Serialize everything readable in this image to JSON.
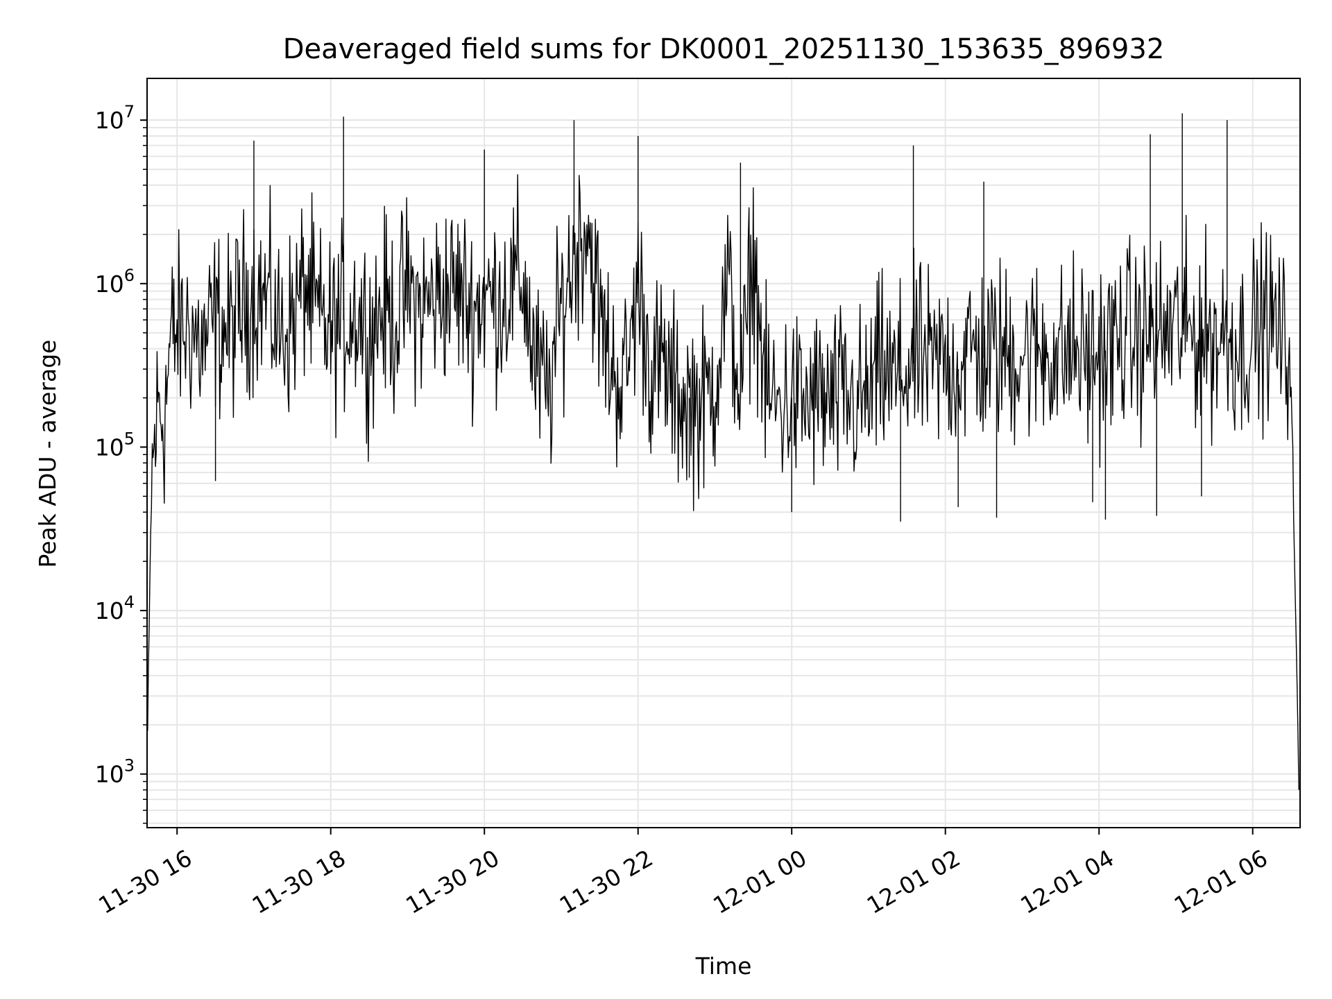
{
  "chart_data": {
    "type": "line",
    "title": "Deaveraged field sums for DK0001_20251130_153635_896932",
    "xlabel": "Time",
    "ylabel": "Peak ADU - average",
    "yscale": "log",
    "ylim": [
      470,
      18000000
    ],
    "xlim": [
      "2025-11-30 15:36:35",
      "2025-12-01 06:37:00"
    ],
    "grid": "on",
    "x_ticks": [
      {
        "label": "11-30 16",
        "time": "2025-11-30 16:00"
      },
      {
        "label": "11-30 18",
        "time": "2025-11-30 18:00"
      },
      {
        "label": "11-30 20",
        "time": "2025-11-30 20:00"
      },
      {
        "label": "11-30 22",
        "time": "2025-11-30 22:00"
      },
      {
        "label": "12-01 00",
        "time": "2025-12-01 00:00"
      },
      {
        "label": "12-01 02",
        "time": "2025-12-01 02:00"
      },
      {
        "label": "12-01 04",
        "time": "2025-12-01 04:00"
      },
      {
        "label": "12-01 06",
        "time": "2025-12-01 06:00"
      }
    ],
    "y_ticks": [
      {
        "base": "10",
        "exp": "3",
        "value": 1000
      },
      {
        "base": "10",
        "exp": "4",
        "value": 10000
      },
      {
        "base": "10",
        "exp": "5",
        "value": 100000
      },
      {
        "base": "10",
        "exp": "6",
        "value": 1000000
      },
      {
        "base": "10",
        "exp": "7",
        "value": 10000000
      }
    ],
    "series": [
      {
        "color": "#000000",
        "x": [
          "2025-11-30 15:37",
          "2025-11-30 15:40",
          "2025-11-30 15:45",
          "2025-11-30 15:50",
          "2025-11-30 15:55",
          "2025-11-30 16:00",
          "2025-11-30 16:10",
          "2025-11-30 16:20",
          "2025-11-30 16:30",
          "2025-11-30 16:40",
          "2025-11-30 16:50",
          "2025-11-30 17:00",
          "2025-11-30 17:10",
          "2025-11-30 17:20",
          "2025-11-30 17:30",
          "2025-11-30 17:40",
          "2025-11-30 17:50",
          "2025-11-30 18:00",
          "2025-11-30 18:10",
          "2025-11-30 18:20",
          "2025-11-30 18:30",
          "2025-11-30 18:40",
          "2025-11-30 18:50",
          "2025-11-30 19:00",
          "2025-11-30 19:10",
          "2025-11-30 19:20",
          "2025-11-30 19:30",
          "2025-11-30 19:40",
          "2025-11-30 19:50",
          "2025-11-30 20:00",
          "2025-11-30 20:10",
          "2025-11-30 20:20",
          "2025-11-30 20:30",
          "2025-11-30 20:40",
          "2025-11-30 20:50",
          "2025-11-30 21:00",
          "2025-11-30 21:10",
          "2025-11-30 21:20",
          "2025-11-30 21:30",
          "2025-11-30 21:40",
          "2025-11-30 21:50",
          "2025-11-30 22:00",
          "2025-11-30 22:10",
          "2025-11-30 22:20",
          "2025-11-30 22:30",
          "2025-11-30 22:40",
          "2025-11-30 22:50",
          "2025-11-30 23:00",
          "2025-11-30 23:10",
          "2025-11-30 23:20",
          "2025-11-30 23:30",
          "2025-11-30 23:40",
          "2025-11-30 23:50",
          "2025-12-01 00:00",
          "2025-12-01 00:10",
          "2025-12-01 00:20",
          "2025-12-01 00:30",
          "2025-12-01 00:40",
          "2025-12-01 00:50",
          "2025-12-01 01:00",
          "2025-12-01 01:10",
          "2025-12-01 01:20",
          "2025-12-01 01:30",
          "2025-12-01 01:40",
          "2025-12-01 01:50",
          "2025-12-01 02:00",
          "2025-12-01 02:10",
          "2025-12-01 02:20",
          "2025-12-01 02:30",
          "2025-12-01 02:40",
          "2025-12-01 02:50",
          "2025-12-01 03:00",
          "2025-12-01 03:10",
          "2025-12-01 03:20",
          "2025-12-01 03:30",
          "2025-12-01 03:40",
          "2025-12-01 03:50",
          "2025-12-01 04:00",
          "2025-12-01 04:10",
          "2025-12-01 04:20",
          "2025-12-01 04:30",
          "2025-12-01 04:40",
          "2025-12-01 04:50",
          "2025-12-01 05:00",
          "2025-12-01 05:10",
          "2025-12-01 05:20",
          "2025-12-01 05:30",
          "2025-12-01 05:40",
          "2025-12-01 05:50",
          "2025-12-01 06:00",
          "2025-12-01 06:10",
          "2025-12-01 06:20",
          "2025-12-01 06:30",
          "2025-12-01 06:36"
        ],
        "y": [
          1800,
          60000,
          180000,
          150000,
          450000,
          500000,
          550000,
          400000,
          600000,
          500000,
          700000,
          900000,
          800000,
          500000,
          600000,
          1000000,
          600000,
          500000,
          600000,
          700000,
          500000,
          700000,
          600000,
          900000,
          700000,
          800000,
          900000,
          900000,
          700000,
          800000,
          800000,
          900000,
          1100000,
          300000,
          200000,
          700000,
          1500000,
          2500000,
          600000,
          300000,
          250000,
          1000000,
          300000,
          300000,
          200000,
          200000,
          180000,
          250000,
          1000000,
          200000,
          1500000,
          200000,
          180000,
          200000,
          180000,
          200000,
          180000,
          200000,
          180000,
          200000,
          300000,
          250000,
          300000,
          350000,
          300000,
          350000,
          300000,
          400000,
          350000,
          400000,
          350000,
          400000,
          380000,
          400000,
          350000,
          400000,
          350000,
          380000,
          400000,
          500000,
          450000,
          500000,
          480000,
          550000,
          500000,
          500000,
          450000,
          500000,
          400000,
          500000,
          600000,
          500000,
          300000,
          800
        ]
      }
    ],
    "spikes_high": [
      {
        "x": "2025-11-30 17:00",
        "y": 7500000
      },
      {
        "x": "2025-11-30 18:10",
        "y": 10500000
      },
      {
        "x": "2025-11-30 20:00",
        "y": 6600000
      },
      {
        "x": "2025-11-30 21:10",
        "y": 10000000
      },
      {
        "x": "2025-11-30 22:00",
        "y": 8000000
      },
      {
        "x": "2025-11-30 23:20",
        "y": 5500000
      },
      {
        "x": "2025-12-01 01:35",
        "y": 7000000
      },
      {
        "x": "2025-12-01 02:30",
        "y": 4200000
      },
      {
        "x": "2025-12-01 04:40",
        "y": 8200000
      },
      {
        "x": "2025-12-01 05:05",
        "y": 11000000
      },
      {
        "x": "2025-12-01 05:40",
        "y": 10000000
      }
    ],
    "spikes_low": [
      {
        "x": "2025-11-30 16:30",
        "y": 62000
      },
      {
        "x": "2025-11-30 22:40",
        "y": 65000
      },
      {
        "x": "2025-12-01 00:00",
        "y": 40000
      },
      {
        "x": "2025-12-01 01:25",
        "y": 35000
      },
      {
        "x": "2025-12-01 02:10",
        "y": 43000
      },
      {
        "x": "2025-12-01 02:40",
        "y": 37000
      },
      {
        "x": "2025-12-01 03:55",
        "y": 46000
      },
      {
        "x": "2025-12-01 04:05",
        "y": 36000
      },
      {
        "x": "2025-12-01 04:45",
        "y": 38000
      },
      {
        "x": "2025-12-01 05:20",
        "y": 50000
      }
    ]
  }
}
